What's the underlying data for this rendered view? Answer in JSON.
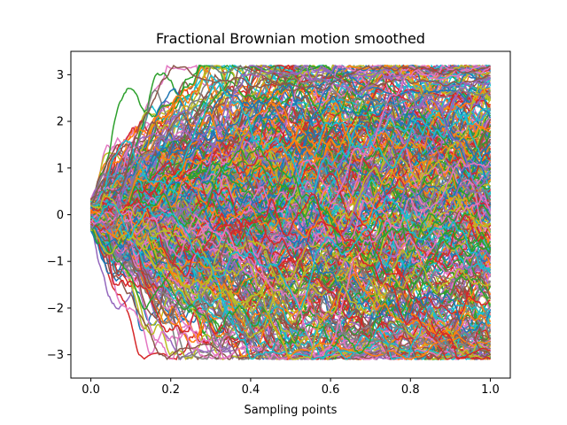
{
  "chart_data": {
    "type": "line",
    "title": "Fractional Brownian motion smoothed",
    "xlabel": "Sampling points",
    "ylabel": "",
    "xlim": [
      -0.05,
      1.05
    ],
    "ylim": [
      -3.5,
      3.5
    ],
    "x_ticks": [
      0.0,
      0.2,
      0.4,
      0.6,
      0.8,
      1.0
    ],
    "x_tick_labels": [
      "0.0",
      "0.2",
      "0.4",
      "0.6",
      "0.8",
      "1.0"
    ],
    "y_ticks": [
      -3,
      -2,
      -1,
      0,
      1,
      2,
      3
    ],
    "y_tick_labels": [
      "−3",
      "−2",
      "−1",
      "0",
      "1",
      "2",
      "3"
    ],
    "grid": false,
    "legend": "none",
    "x_domain": [
      0.0,
      1.0
    ],
    "num_series": 400,
    "num_points": 300,
    "start_value_range": [
      -0.35,
      0.35
    ],
    "end_value_range": [
      -3.1,
      3.2
    ],
    "color_cycle": [
      "#1f77b4",
      "#ff7f0e",
      "#2ca02c",
      "#d62728",
      "#9467bd",
      "#8c564b",
      "#e377c2",
      "#7f7f7f",
      "#bcbd22",
      "#17becf"
    ]
  }
}
